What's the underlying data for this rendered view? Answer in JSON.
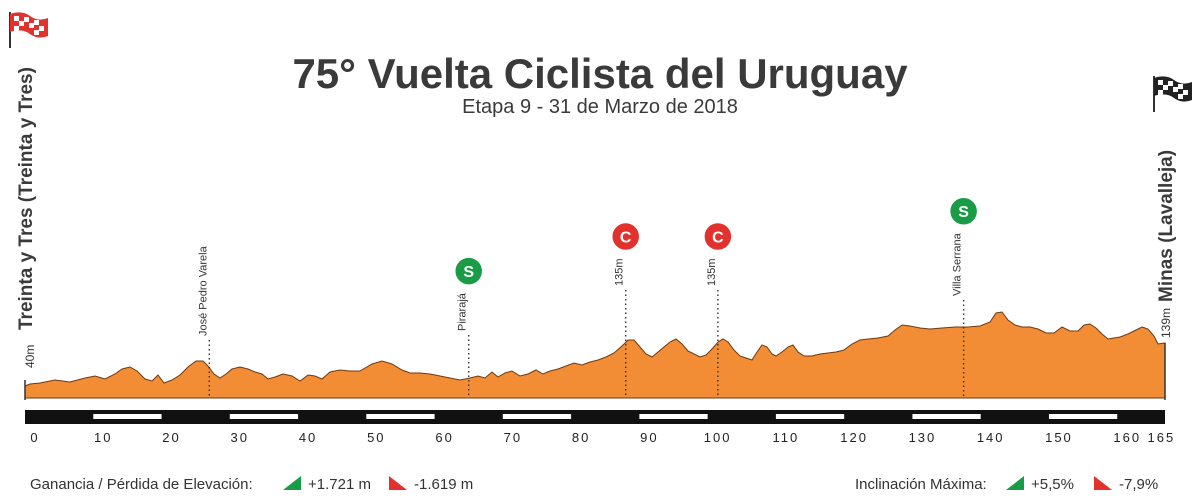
{
  "header": {
    "title": "75° Vuelta Ciclista del Uruguay",
    "subtitle": "Etapa 9 - 31 de Marzo de 2018"
  },
  "start": {
    "name": "Treinta y Tres (Treinta y Tres)",
    "elevation": "40m",
    "flag_icon": "checkered-flag-red-icon"
  },
  "finish": {
    "name": "Minas (Lavalleja)",
    "elevation": "139m",
    "flag_icon": "checkered-flag-black-icon"
  },
  "waypoints": [
    {
      "km": 27,
      "label": "José Pedro Varela"
    },
    {
      "km": 65,
      "label": "Pirarajá",
      "badge": "S"
    },
    {
      "km": 88,
      "label": "135m",
      "badge": "C"
    },
    {
      "km": 101.5,
      "label": "135m",
      "badge": "C"
    },
    {
      "km": 137.5,
      "label": "Villa Serrana",
      "badge": "S"
    }
  ],
  "badge_colors": {
    "S": "#1a9b45",
    "C": "#e2322d"
  },
  "profile_color": "#f28c35",
  "axis": {
    "ticks": [
      "0",
      "10",
      "20",
      "30",
      "40",
      "50",
      "60",
      "70",
      "80",
      "90",
      "100",
      "110",
      "120",
      "130",
      "140",
      "150",
      "160",
      "165"
    ],
    "tick_km": [
      0,
      10,
      20,
      30,
      40,
      50,
      60,
      70,
      80,
      90,
      100,
      110,
      120,
      130,
      140,
      150,
      160,
      165
    ],
    "max_km": 167
  },
  "stats": {
    "elevation_label": "Ganancia / Pérdida de Elevación:",
    "gain": "+1.721 m",
    "loss": "-1.619 m",
    "incline_label": "Inclinación Máxima:",
    "max_up": "+5,5%",
    "max_down": "-7,9%"
  }
}
